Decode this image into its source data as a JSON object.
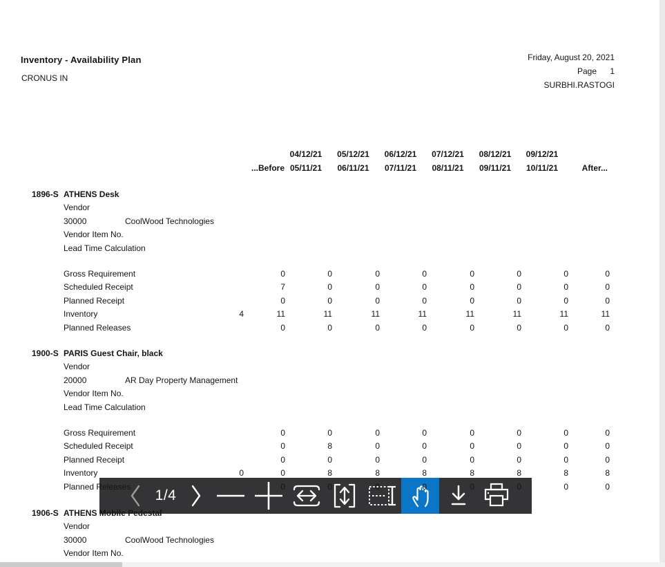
{
  "header": {
    "title": "Inventory - Availability Plan",
    "company": "CRONUS IN",
    "date": "Friday, August 20, 2021",
    "page_label": "Page",
    "page_number": "1",
    "user": "SURBHI.RASTOGI"
  },
  "table": {
    "period_start_headers": [
      "04/12/21",
      "05/12/21",
      "06/12/21",
      "07/12/21",
      "08/12/21",
      "09/12/21"
    ],
    "before_label": "...Before",
    "period_end_headers": [
      "05/11/21",
      "06/11/21",
      "07/11/21",
      "08/11/21",
      "09/11/21",
      "10/11/21"
    ],
    "after_label": "After...",
    "labels": {
      "vendor": "Vendor",
      "vendor_item": "Vendor Item No.",
      "lead_time": "Lead Time Calculation"
    },
    "items": [
      {
        "no": "1896-S",
        "description": "ATHENS Desk",
        "vendor_no": "30000",
        "vendor_name": "CoolWood Technologies",
        "rows": [
          {
            "label": "Gross Requirement",
            "values": [
              "",
              "0",
              "0",
              "0",
              "0",
              "0",
              "0",
              "0",
              "0"
            ]
          },
          {
            "label": "Scheduled Receipt",
            "values": [
              "",
              "7",
              "0",
              "0",
              "0",
              "0",
              "0",
              "0",
              "0"
            ]
          },
          {
            "label": "Planned Receipt",
            "values": [
              "",
              "0",
              "0",
              "0",
              "0",
              "0",
              "0",
              "0",
              "0"
            ]
          },
          {
            "label": "Inventory",
            "values": [
              "4",
              "11",
              "11",
              "11",
              "11",
              "11",
              "11",
              "11",
              "11"
            ]
          },
          {
            "label": "Planned Releases",
            "values": [
              "",
              "0",
              "0",
              "0",
              "0",
              "0",
              "0",
              "0",
              "0"
            ]
          }
        ]
      },
      {
        "no": "1900-S",
        "description": "PARIS Guest Chair, black",
        "vendor_no": "20000",
        "vendor_name": "AR Day Property Management",
        "rows": [
          {
            "label": "Gross Requirement",
            "values": [
              "",
              "0",
              "0",
              "0",
              "0",
              "0",
              "0",
              "0",
              "0"
            ]
          },
          {
            "label": "Scheduled Receipt",
            "values": [
              "",
              "0",
              "8",
              "0",
              "0",
              "0",
              "0",
              "0",
              "0"
            ]
          },
          {
            "label": "Planned Receipt",
            "values": [
              "",
              "0",
              "0",
              "0",
              "0",
              "0",
              "0",
              "0",
              "0"
            ]
          },
          {
            "label": "Inventory",
            "values": [
              "0",
              "0",
              "8",
              "8",
              "8",
              "8",
              "8",
              "8",
              "8"
            ]
          },
          {
            "label": "Planned Releases",
            "values": [
              "",
              "0",
              "0",
              "0",
              "0",
              "0",
              "0",
              "0",
              "0"
            ]
          }
        ]
      },
      {
        "no": "1906-S",
        "description": "ATHENS Mobile Pedestal",
        "vendor_no": "30000",
        "vendor_name": "CoolWood Technologies",
        "rows": []
      }
    ]
  },
  "toolbar": {
    "page_indicator": "1/4",
    "buttons": [
      {
        "name": "previous-page",
        "icon": "chevron-left",
        "disabled": true
      },
      {
        "name": "page-indicator"
      },
      {
        "name": "next-page",
        "icon": "chevron-right"
      },
      {
        "name": "zoom-out",
        "icon": "minus"
      },
      {
        "name": "zoom-in",
        "icon": "plus"
      },
      {
        "name": "fit-to-width",
        "icon": "fit-width"
      },
      {
        "name": "fit-to-height",
        "icon": "fit-height"
      },
      {
        "name": "text-selection",
        "icon": "text-select"
      },
      {
        "name": "hand-tool",
        "icon": "hand",
        "active": true
      },
      {
        "name": "download",
        "icon": "download"
      },
      {
        "name": "print",
        "icon": "printer"
      }
    ],
    "colors": {
      "background": "#343436",
      "active": "#0b76c8",
      "icon": "#ffffff",
      "icon_disabled": "#9b9b9b"
    }
  },
  "scrollbars": {
    "track_color": "#f1f1f1",
    "thumb_color": "#cbcbcb"
  }
}
